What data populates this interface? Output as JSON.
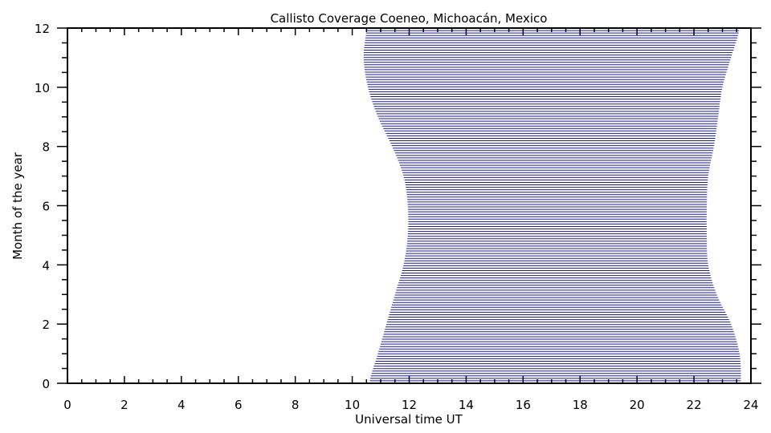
{
  "chart_data": {
    "type": "area",
    "title": "Callisto Coverage Coeneo, Michoacán, Mexico",
    "xlabel": "Universal time UT",
    "ylabel": "Month of the year",
    "xlim": [
      0,
      24
    ],
    "ylim": [
      0,
      12
    ],
    "xticks": [
      "0",
      "2",
      "4",
      "6",
      "8",
      "10",
      "12",
      "14",
      "16",
      "18",
      "20",
      "22",
      "24"
    ],
    "yticks": [
      "0",
      "2",
      "4",
      "6",
      "8",
      "10",
      "12"
    ],
    "line_color": "#1a1a99",
    "grid": false,
    "coverage": {
      "months": [
        0,
        1,
        2,
        3,
        4,
        5,
        6,
        7,
        8,
        9,
        10,
        11,
        12
      ],
      "start_ut": [
        10.6,
        10.9,
        11.2,
        11.5,
        11.8,
        11.95,
        11.95,
        11.8,
        11.4,
        10.9,
        10.55,
        10.4,
        10.5
      ],
      "end_ut": [
        23.65,
        23.6,
        23.3,
        22.8,
        22.5,
        22.45,
        22.45,
        22.5,
        22.7,
        22.85,
        23.0,
        23.3,
        23.6
      ]
    }
  }
}
